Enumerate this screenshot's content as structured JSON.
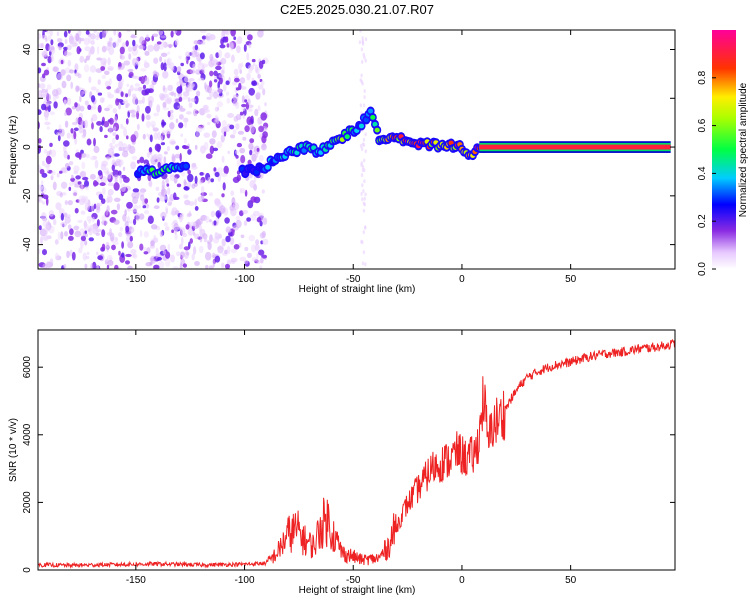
{
  "title": "C2E5.2025.030.21.07.R07",
  "colors": {
    "snr_line": "#ee2222",
    "frame": "#000000",
    "background": "#ffffff"
  },
  "chart_data": [
    {
      "type": "heatmap",
      "name": "spectrogram",
      "xlabel": "Height of straight line (km)",
      "ylabel": "Frequency (Hz)",
      "xlim": [
        -195,
        98
      ],
      "ylim": [
        -50,
        48
      ],
      "x_ticks": [
        -150,
        -100,
        -50,
        0,
        50
      ],
      "x_tick_labels": [
        "-150",
        "-100",
        "-50",
        "0",
        "50"
      ],
      "y_ticks": [
        -40,
        -20,
        0,
        20,
        40
      ],
      "y_tick_labels": [
        "-40",
        "-20",
        "0",
        "20",
        "40"
      ],
      "colorbar": {
        "label": "Normalized spectral amplitude",
        "range": [
          0,
          1
        ],
        "ticks": [
          0.0,
          0.2,
          0.4,
          0.6,
          0.8
        ],
        "tick_labels": [
          "0.0",
          "0.2",
          "0.4",
          "0.6",
          "0.8"
        ],
        "colormap": "rainbow (white-violet-blue-cyan-green-yellow-red-magenta)"
      },
      "noise_region": {
        "x_start": -195,
        "x_end": -90,
        "amplitude": 0.12
      },
      "signal_trace": [
        {
          "x": -148,
          "y": -10,
          "amp": 0.35
        },
        {
          "x": -140,
          "y": -10,
          "amp": 0.5
        },
        {
          "x": -132,
          "y": -9,
          "amp": 0.45
        },
        {
          "x": -127,
          "y": -8,
          "amp": 0.3
        },
        {
          "x": -100,
          "y": -10,
          "amp": 0.25
        },
        {
          "x": -92,
          "y": -9,
          "amp": 0.3
        },
        {
          "x": -85,
          "y": -4,
          "amp": 0.35
        },
        {
          "x": -78,
          "y": -2,
          "amp": 0.45
        },
        {
          "x": -72,
          "y": 0,
          "amp": 0.4
        },
        {
          "x": -65,
          "y": -2,
          "amp": 0.45
        },
        {
          "x": -60,
          "y": 2,
          "amp": 0.5
        },
        {
          "x": -55,
          "y": 4,
          "amp": 0.55
        },
        {
          "x": -48,
          "y": 8,
          "amp": 0.35
        },
        {
          "x": -42,
          "y": 14,
          "amp": 0.4
        },
        {
          "x": -38,
          "y": 3,
          "amp": 0.55
        },
        {
          "x": -32,
          "y": 5,
          "amp": 0.7
        },
        {
          "x": -26,
          "y": 3,
          "amp": 0.8
        },
        {
          "x": -20,
          "y": 1,
          "amp": 0.85
        },
        {
          "x": -14,
          "y": 1,
          "amp": 0.75
        },
        {
          "x": -8,
          "y": 0,
          "amp": 0.7
        },
        {
          "x": -2,
          "y": 1,
          "amp": 0.75
        },
        {
          "x": 4,
          "y": -3,
          "amp": 0.7
        },
        {
          "x": 10,
          "y": 0,
          "amp": 0.9
        },
        {
          "x": 30,
          "y": 0,
          "amp": 0.92
        },
        {
          "x": 50,
          "y": 0,
          "amp": 0.92
        },
        {
          "x": 70,
          "y": 0,
          "amp": 0.92
        },
        {
          "x": 96,
          "y": 0,
          "amp": 0.92
        }
      ]
    },
    {
      "type": "line",
      "name": "snr",
      "xlabel": "Height of straight line (km)",
      "ylabel": "SNR (10 * v/v)",
      "xlim": [
        -195,
        98
      ],
      "ylim": [
        0,
        7100
      ],
      "x_ticks": [
        -150,
        -100,
        -50,
        0,
        50
      ],
      "x_tick_labels": [
        "-150",
        "-100",
        "-50",
        "0",
        "50"
      ],
      "y_ticks": [
        0,
        2000,
        4000,
        6000
      ],
      "y_tick_labels": [
        "0",
        "2000",
        "4000",
        "6000"
      ],
      "series": [
        {
          "x": [
            -195,
            -180,
            -160,
            -140,
            -120,
            -100,
            -90,
            -85,
            -80,
            -76,
            -72,
            -68,
            -65,
            -62,
            -58,
            -55,
            -50,
            -46,
            -42,
            -38,
            -34,
            -30,
            -26,
            -22,
            -18,
            -14,
            -10,
            -6,
            -2,
            2,
            6,
            8,
            10,
            12,
            14,
            18,
            22,
            26,
            30,
            36,
            42,
            50,
            58,
            66,
            74,
            82,
            90,
            98
          ],
          "y": [
            150,
            140,
            160,
            180,
            150,
            170,
            200,
            500,
            1050,
            1200,
            850,
            700,
            1300,
            1500,
            900,
            500,
            400,
            300,
            320,
            350,
            700,
            1300,
            1850,
            2250,
            2600,
            3000,
            3150,
            3250,
            3500,
            3300,
            3400,
            4000,
            5200,
            3700,
            4300,
            4500,
            5000,
            5400,
            5700,
            5900,
            6050,
            6150,
            6300,
            6400,
            6450,
            6550,
            6600,
            6700
          ]
        }
      ]
    }
  ]
}
